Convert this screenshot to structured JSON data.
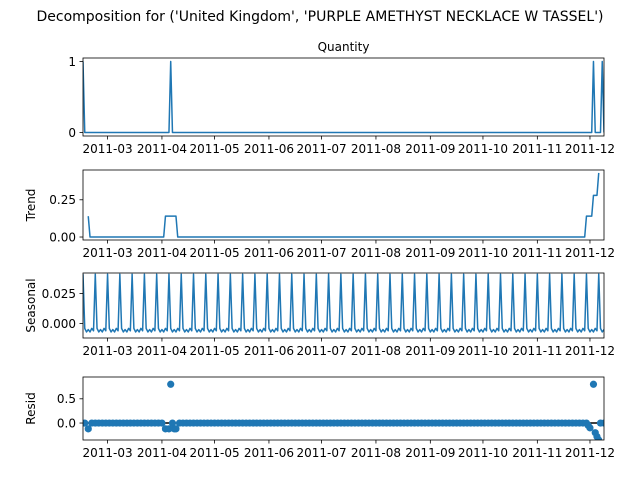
{
  "suptitle": "Decomposition for ('United Kingdom', 'PURPLE AMETHYST NECKLACE W TASSEL')",
  "chart_data": [
    {
      "type": "line",
      "title": "Quantity",
      "ylabel": "",
      "x_range": [
        "2011-02-15",
        "2011-12-09"
      ],
      "ylim": [
        -0.05,
        1.05
      ],
      "yticks": [
        0,
        1
      ],
      "xticks": [
        "2011-03",
        "2011-04",
        "2011-05",
        "2011-06",
        "2011-07",
        "2011-08",
        "2011-09",
        "2011-10",
        "2011-11",
        "2011-12"
      ],
      "series": [
        {
          "name": "",
          "points": [
            [
              "2011-02-15",
              1
            ],
            [
              "2011-02-16",
              0
            ],
            [
              "2011-04-05",
              0
            ],
            [
              "2011-04-06",
              1
            ],
            [
              "2011-04-07",
              0
            ],
            [
              "2011-12-02",
              0
            ],
            [
              "2011-12-03",
              1
            ],
            [
              "2011-12-04",
              0
            ],
            [
              "2011-12-07",
              0
            ],
            [
              "2011-12-08",
              1
            ],
            [
              "2011-12-09",
              0
            ]
          ]
        }
      ]
    },
    {
      "type": "line",
      "title": "",
      "ylabel": "Trend",
      "x_range": [
        "2011-02-15",
        "2011-12-09"
      ],
      "ylim": [
        -0.02,
        0.45
      ],
      "yticks": [
        0.0,
        0.25
      ],
      "xticks": [
        "2011-03",
        "2011-04",
        "2011-05",
        "2011-06",
        "2011-07",
        "2011-08",
        "2011-09",
        "2011-10",
        "2011-11",
        "2011-12"
      ],
      "series": [
        {
          "name": "",
          "points": [
            [
              "2011-02-18",
              0.14
            ],
            [
              "2011-02-19",
              0
            ],
            [
              "2011-04-02",
              0
            ],
            [
              "2011-04-03",
              0.14
            ],
            [
              "2011-04-09",
              0.14
            ],
            [
              "2011-04-10",
              0
            ],
            [
              "2011-11-28",
              0
            ],
            [
              "2011-11-29",
              0.14
            ],
            [
              "2011-12-02",
              0.14
            ],
            [
              "2011-12-03",
              0.28
            ],
            [
              "2011-12-05",
              0.28
            ],
            [
              "2011-12-06",
              0.43
            ]
          ]
        }
      ]
    },
    {
      "type": "line",
      "title": "",
      "ylabel": "Seasonal",
      "x_range": [
        "2011-02-15",
        "2011-12-09"
      ],
      "ylim": [
        -0.012,
        0.042
      ],
      "yticks": [
        0.0,
        0.025
      ],
      "xticks": [
        "2011-03",
        "2011-04",
        "2011-05",
        "2011-06",
        "2011-07",
        "2011-08",
        "2011-09",
        "2011-10",
        "2011-11",
        "2011-12"
      ],
      "period_days": 7,
      "weekly_pattern": [
        0.041,
        -0.004,
        -0.007,
        -0.005,
        -0.007,
        -0.004,
        -0.006
      ],
      "series": [
        {
          "name": "",
          "points": []
        }
      ]
    },
    {
      "type": "scatter",
      "title": "",
      "ylabel": "Resid",
      "x_range": [
        "2011-02-15",
        "2011-12-09"
      ],
      "ylim": [
        -0.35,
        0.95
      ],
      "yticks": [
        0.0,
        0.5
      ],
      "xticks": [
        "2011-03",
        "2011-04",
        "2011-05",
        "2011-06",
        "2011-07",
        "2011-08",
        "2011-09",
        "2011-10",
        "2011-11",
        "2011-12"
      ],
      "baseline": 0,
      "series": [
        {
          "name": "",
          "points": [
            [
              "2011-02-18",
              -0.12
            ],
            [
              "2011-04-03",
              -0.12
            ],
            [
              "2011-04-05",
              -0.12
            ],
            [
              "2011-04-06",
              0.8
            ],
            [
              "2011-04-08",
              -0.12
            ],
            [
              "2011-04-09",
              -0.12
            ],
            [
              "2011-11-30",
              -0.05
            ],
            [
              "2011-12-01",
              -0.1
            ],
            [
              "2011-12-03",
              0.8
            ],
            [
              "2011-12-04",
              -0.2
            ],
            [
              "2011-12-05",
              -0.28
            ],
            [
              "2011-12-06",
              -0.35
            ]
          ]
        }
      ]
    }
  ]
}
